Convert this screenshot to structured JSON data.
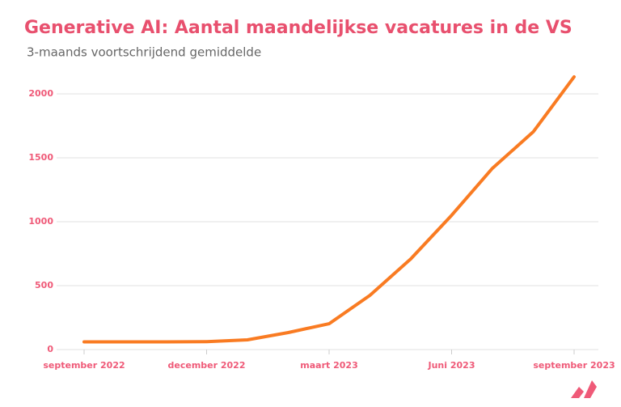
{
  "chart_data": {
    "type": "line",
    "title": "Generative AI: Aantal maandelijkse vacatures in de VS",
    "subtitle": "3-maands voortschrijdend gemiddelde",
    "categories": [
      "september 2022",
      null,
      null,
      "december 2022",
      null,
      null,
      "maart 2023",
      null,
      null,
      "Juni 2023",
      null,
      null,
      "september 2023"
    ],
    "values": [
      60,
      60,
      60,
      62,
      76,
      133,
      202,
      424,
      709,
      1050,
      1418,
      1703,
      2133
    ],
    "color": "#f97b22",
    "ylim": [
      0,
      2200
    ],
    "yticks": [
      0,
      500,
      1000,
      1500,
      2000
    ],
    "grid": true
  }
}
